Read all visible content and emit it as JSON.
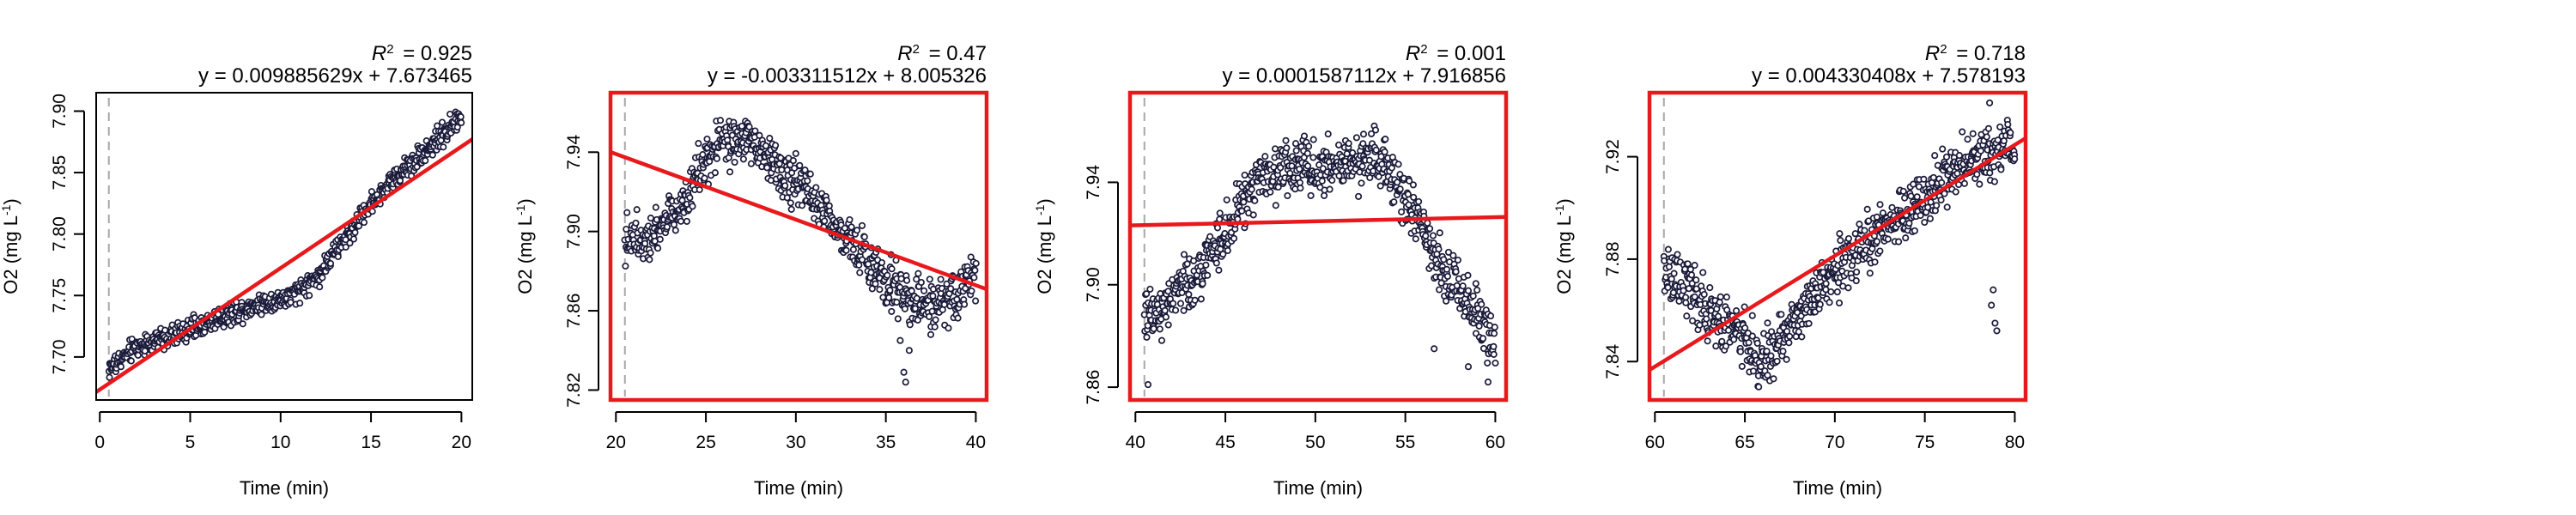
{
  "figure": {
    "xlabel": "Time (min)",
    "ylabel_prefix": "O2 (mg L",
    "ylabel_exponent": "-1",
    "ylabel_suffix": ")",
    "r2_symbol": "R",
    "r2_exponent": "2",
    "colors": {
      "points": "#1a1a3a",
      "fit_line": "#e8191c",
      "frame_highlight": "#e8191c",
      "start_marker": "#a8a8a8"
    }
  },
  "chart_data": [
    {
      "type": "scatter",
      "panel": 1,
      "frame_highlight": false,
      "r2_value": "= 0.925",
      "equation": "y = 0.009885629x + 7.673465",
      "xlim": [
        -0.2,
        20.6
      ],
      "ylim": [
        7.665,
        7.915
      ],
      "xticks": [
        "0",
        "5",
        "10",
        "15",
        "20"
      ],
      "yticks": [
        "7.70",
        "7.75",
        "7.80",
        "7.85",
        "7.90"
      ],
      "start_marker_x": 0.5,
      "fit": {
        "slope": 0.009885629,
        "intercept": 7.673465
      },
      "trend": [
        [
          0.5,
          7.69
        ],
        [
          2,
          7.708
        ],
        [
          4,
          7.717
        ],
        [
          6,
          7.728
        ],
        [
          7.5,
          7.737
        ],
        [
          9,
          7.744
        ],
        [
          10.5,
          7.748
        ],
        [
          12,
          7.765
        ],
        [
          13.5,
          7.795
        ],
        [
          15,
          7.825
        ],
        [
          16.5,
          7.848
        ],
        [
          18,
          7.868
        ],
        [
          19.5,
          7.888
        ],
        [
          20,
          7.895
        ]
      ],
      "noise": 0.006,
      "outliers": []
    },
    {
      "type": "scatter",
      "panel": 2,
      "frame_highlight": true,
      "r2_value": "= 0.47",
      "equation": "y = -0.003311512x + 8.005326",
      "xlim": [
        19.7,
        40.6
      ],
      "ylim": [
        7.815,
        7.97
      ],
      "xticks": [
        "20",
        "25",
        "30",
        "35",
        "40"
      ],
      "yticks": [
        "7.82",
        "7.86",
        "7.90",
        "7.94"
      ],
      "start_marker_x": 20.5,
      "fit": {
        "slope": -0.003311512,
        "intercept": 8.005326
      },
      "trend": [
        [
          20.5,
          7.895
        ],
        [
          22,
          7.9
        ],
        [
          23.5,
          7.912
        ],
        [
          24.5,
          7.928
        ],
        [
          26,
          7.945
        ],
        [
          27.5,
          7.945
        ],
        [
          29,
          7.932
        ],
        [
          31,
          7.918
        ],
        [
          32.5,
          7.9
        ],
        [
          34,
          7.885
        ],
        [
          35.5,
          7.872
        ],
        [
          37,
          7.862
        ],
        [
          38.5,
          7.865
        ],
        [
          40,
          7.878
        ]
      ],
      "noise": 0.008,
      "outliers": [
        [
          36.1,
          7.824
        ],
        [
          36.0,
          7.829
        ],
        [
          35.8,
          7.845
        ],
        [
          36.3,
          7.84
        ],
        [
          37.5,
          7.848
        ]
      ]
    },
    {
      "type": "scatter",
      "panel": 3,
      "frame_highlight": true,
      "r2_value": "= 0.001",
      "equation": "y = 0.0001587112x + 7.916856",
      "xlim": [
        39.7,
        60.6
      ],
      "ylim": [
        7.855,
        7.975
      ],
      "xticks": [
        "40",
        "45",
        "50",
        "55",
        "60"
      ],
      "yticks": [
        "7.86",
        "7.90",
        "7.94"
      ],
      "start_marker_x": 40.5,
      "fit": {
        "slope": 0.0001587112,
        "intercept": 7.916856
      },
      "trend": [
        [
          40.5,
          7.885
        ],
        [
          42,
          7.895
        ],
        [
          43.5,
          7.905
        ],
        [
          45,
          7.92
        ],
        [
          46.5,
          7.938
        ],
        [
          48,
          7.945
        ],
        [
          50,
          7.945
        ],
        [
          52,
          7.948
        ],
        [
          53.5,
          7.95
        ],
        [
          55,
          7.935
        ],
        [
          56.5,
          7.912
        ],
        [
          58,
          7.898
        ],
        [
          59.5,
          7.882
        ],
        [
          60,
          7.875
        ]
      ],
      "noise": 0.007,
      "outliers": [
        [
          40.7,
          7.861
        ],
        [
          56.6,
          7.875
        ],
        [
          59.6,
          7.862
        ],
        [
          58.5,
          7.868
        ]
      ]
    },
    {
      "type": "scatter",
      "panel": 4,
      "frame_highlight": true,
      "r2_value": "= 0.718",
      "equation": "y = 0.004330408x + 7.578193",
      "xlim": [
        59.7,
        80.6
      ],
      "ylim": [
        7.825,
        7.945
      ],
      "xticks": [
        "60",
        "65",
        "70",
        "75",
        "80"
      ],
      "yticks": [
        "7.84",
        "7.88",
        "7.92"
      ],
      "start_marker_x": 60.5,
      "fit": {
        "slope": 0.004330408,
        "intercept": 7.578193
      },
      "trend": [
        [
          60.5,
          7.875
        ],
        [
          62,
          7.868
        ],
        [
          63.5,
          7.857
        ],
        [
          65,
          7.848
        ],
        [
          66,
          7.84
        ],
        [
          67,
          7.85
        ],
        [
          68.5,
          7.862
        ],
        [
          70,
          7.875
        ],
        [
          71.5,
          7.885
        ],
        [
          73,
          7.893
        ],
        [
          74.5,
          7.902
        ],
        [
          76,
          7.912
        ],
        [
          77.5,
          7.918
        ],
        [
          79,
          7.922
        ],
        [
          80,
          7.925
        ]
      ],
      "noise": 0.007,
      "outliers": [
        [
          78.6,
          7.941
        ],
        [
          78.8,
          7.868
        ],
        [
          78.9,
          7.855
        ],
        [
          79.0,
          7.852
        ],
        [
          78.7,
          7.862
        ]
      ]
    }
  ]
}
